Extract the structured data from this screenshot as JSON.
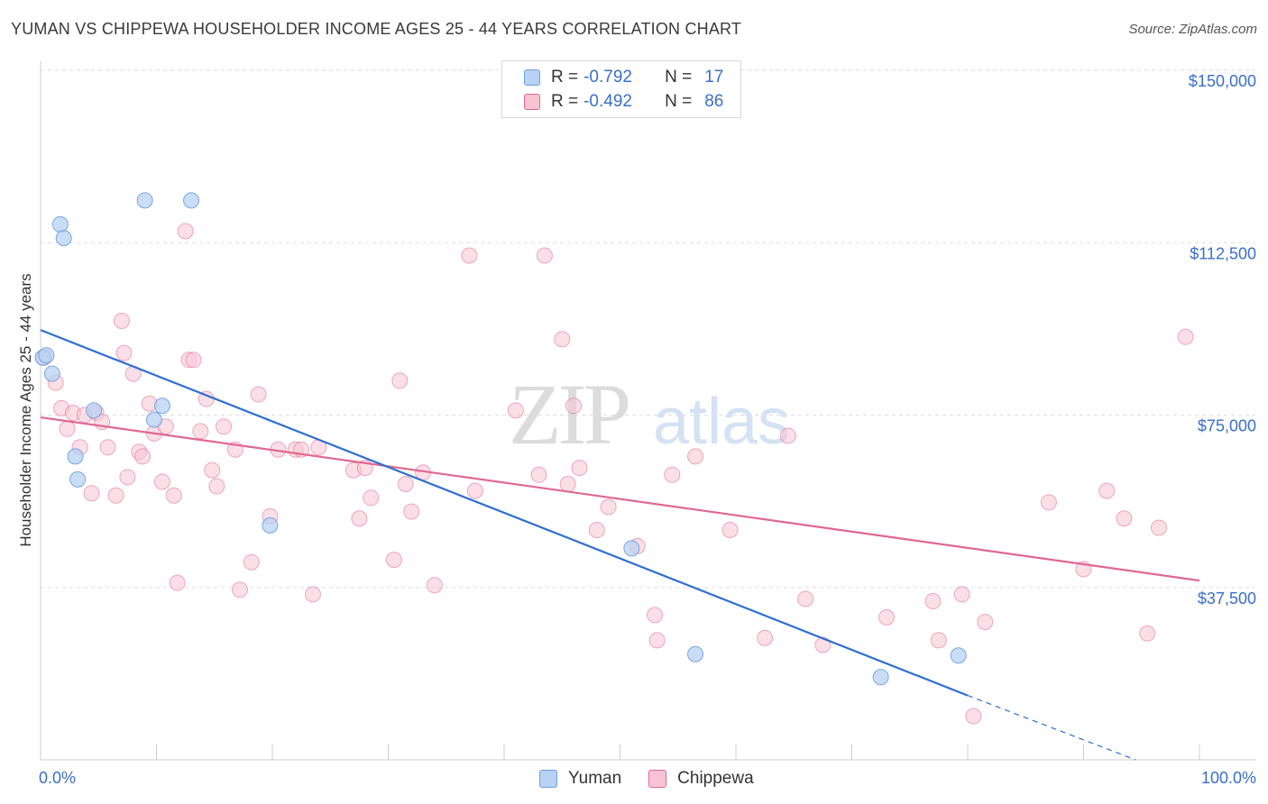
{
  "header": {
    "title": "YUMAN VS CHIPPEWA HOUSEHOLDER INCOME AGES 25 - 44 YEARS CORRELATION CHART",
    "source": "Source: ZipAtlas.com"
  },
  "watermark": {
    "zip": "ZIP",
    "atlas": "atlas"
  },
  "legend": {
    "rows": [
      {
        "r_label": "R =",
        "r_value": "-0.792",
        "n_label": "N =",
        "n_value": "17",
        "color": "#a8c8f0"
      },
      {
        "r_label": "R =",
        "r_value": "-0.492",
        "n_label": "N =",
        "n_value": "86",
        "color": "#f5b8cc"
      }
    ]
  },
  "chart_data": {
    "type": "scatter",
    "title": "YUMAN VS CHIPPEWA HOUSEHOLDER INCOME AGES 25 - 44 YEARS CORRELATION CHART",
    "xlabel": "",
    "ylabel": "Householder Income Ages 25 - 44 years",
    "xlim": [
      0,
      100
    ],
    "ylim": [
      0,
      150000
    ],
    "x_tick_labels": [
      "0.0%",
      "100.0%"
    ],
    "y_ticks": [
      37500,
      75000,
      112500,
      150000
    ],
    "y_tick_labels": [
      "$37,500",
      "$75,000",
      "$112,500",
      "$150,000"
    ],
    "grid": true,
    "legend_position": "bottom-center",
    "series": [
      {
        "name": "Yuman",
        "color": "#6ea0de",
        "fill": "#b8d2f3",
        "points": [
          [
            0.2,
            87500
          ],
          [
            1.0,
            84000
          ],
          [
            1.7,
            116500
          ],
          [
            2.0,
            113500
          ],
          [
            3.0,
            66000
          ],
          [
            3.2,
            61000
          ],
          [
            4.6,
            76000
          ],
          [
            9.0,
            121700
          ],
          [
            9.8,
            74000
          ],
          [
            10.5,
            77000
          ],
          [
            13.0,
            121700
          ],
          [
            19.8,
            51000
          ],
          [
            51.0,
            46000
          ],
          [
            56.5,
            23000
          ],
          [
            72.5,
            18000
          ],
          [
            79.2,
            22700
          ],
          [
            0.5,
            88000
          ]
        ],
        "trend": {
          "x0": 0,
          "y0": 93500,
          "x1": 80,
          "y1": 14000,
          "dash_x1": 94.5,
          "dash_y1": 0
        }
      },
      {
        "name": "Chippewa",
        "color": "#e06890",
        "fill": "#f8c4d4",
        "points": [
          [
            0.3,
            87500
          ],
          [
            1.3,
            82000
          ],
          [
            1.8,
            76500
          ],
          [
            2.3,
            72000
          ],
          [
            2.8,
            75500
          ],
          [
            3.4,
            68000
          ],
          [
            3.8,
            75000
          ],
          [
            4.4,
            58000
          ],
          [
            4.8,
            75500
          ],
          [
            5.3,
            73500
          ],
          [
            5.8,
            68000
          ],
          [
            6.5,
            57500
          ],
          [
            7.0,
            95500
          ],
          [
            7.2,
            88500
          ],
          [
            7.5,
            61500
          ],
          [
            8.0,
            84000
          ],
          [
            8.5,
            67000
          ],
          [
            8.8,
            66000
          ],
          [
            9.4,
            77500
          ],
          [
            9.8,
            71000
          ],
          [
            10.5,
            60500
          ],
          [
            10.8,
            72500
          ],
          [
            11.5,
            57500
          ],
          [
            11.8,
            38500
          ],
          [
            12.5,
            115000
          ],
          [
            12.8,
            87000
          ],
          [
            13.2,
            87000
          ],
          [
            13.8,
            71500
          ],
          [
            14.3,
            78500
          ],
          [
            14.8,
            63000
          ],
          [
            15.2,
            59500
          ],
          [
            15.8,
            72500
          ],
          [
            16.8,
            67500
          ],
          [
            17.2,
            37000
          ],
          [
            18.2,
            43000
          ],
          [
            18.8,
            79500
          ],
          [
            19.8,
            53000
          ],
          [
            20.5,
            67500
          ],
          [
            22.0,
            67500
          ],
          [
            22.5,
            67500
          ],
          [
            23.5,
            36000
          ],
          [
            24.0,
            68000
          ],
          [
            27.0,
            63000
          ],
          [
            27.5,
            52500
          ],
          [
            28.0,
            63500
          ],
          [
            28.5,
            57000
          ],
          [
            30.5,
            43500
          ],
          [
            31.0,
            82500
          ],
          [
            31.5,
            60000
          ],
          [
            32.0,
            54000
          ],
          [
            33.0,
            62500
          ],
          [
            34.0,
            38000
          ],
          [
            37.5,
            58500
          ],
          [
            41.0,
            76000
          ],
          [
            43.0,
            62000
          ],
          [
            43.5,
            109700
          ],
          [
            45.0,
            91500
          ],
          [
            45.5,
            60000
          ],
          [
            46.0,
            77000
          ],
          [
            46.5,
            63500
          ],
          [
            48.0,
            50000
          ],
          [
            49.0,
            55000
          ],
          [
            51.5,
            46500
          ],
          [
            53.0,
            31500
          ],
          [
            53.2,
            26000
          ],
          [
            54.5,
            62000
          ],
          [
            56.5,
            66000
          ],
          [
            59.5,
            50000
          ],
          [
            62.5,
            26500
          ],
          [
            64.5,
            70500
          ],
          [
            66.0,
            35000
          ],
          [
            67.5,
            25000
          ],
          [
            73.0,
            31000
          ],
          [
            77.0,
            34500
          ],
          [
            77.5,
            26000
          ],
          [
            79.5,
            36000
          ],
          [
            80.5,
            9500
          ],
          [
            81.5,
            30000
          ],
          [
            87.0,
            56000
          ],
          [
            90.0,
            41500
          ],
          [
            92.0,
            58500
          ],
          [
            93.5,
            52500
          ],
          [
            95.5,
            27500
          ],
          [
            96.5,
            50500
          ],
          [
            98.8,
            92000
          ],
          [
            37.0,
            109700
          ]
        ],
        "trend": {
          "x0": 0,
          "y0": 74500,
          "x1": 100,
          "y1": 39000
        }
      }
    ]
  }
}
